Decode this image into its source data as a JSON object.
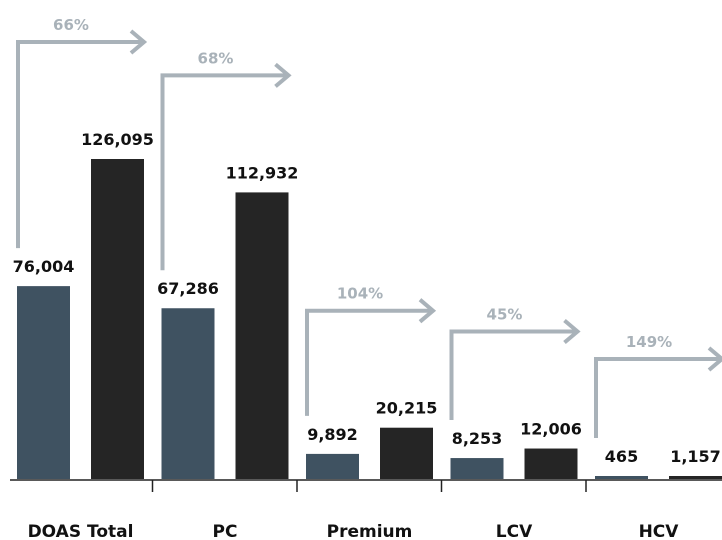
{
  "chart_data": {
    "type": "bar",
    "categories": [
      "DOAS Total",
      "PC",
      "Premium",
      "LCV",
      "HCV"
    ],
    "series": [
      {
        "values": [
          76004,
          67286,
          9892,
          8253,
          465
        ]
      },
      {
        "values": [
          126095,
          112932,
          20215,
          12006,
          1157
        ]
      }
    ],
    "value_labels": [
      [
        "76,004",
        "126,095"
      ],
      [
        "67,286",
        "112,932"
      ],
      [
        "9,892",
        "20,215"
      ],
      [
        "8,253",
        "12,006"
      ],
      [
        "465",
        "1,157"
      ]
    ],
    "growth_labels": [
      "66%",
      "68%",
      "104%",
      "45%",
      "149%"
    ],
    "ylim": [
      0,
      126095
    ],
    "grid": false,
    "legend": "none",
    "colors": {
      "series_1": "#3f5261",
      "series_2": "#252525",
      "arrow": "#a9b2b9",
      "axis": "#222222"
    }
  }
}
